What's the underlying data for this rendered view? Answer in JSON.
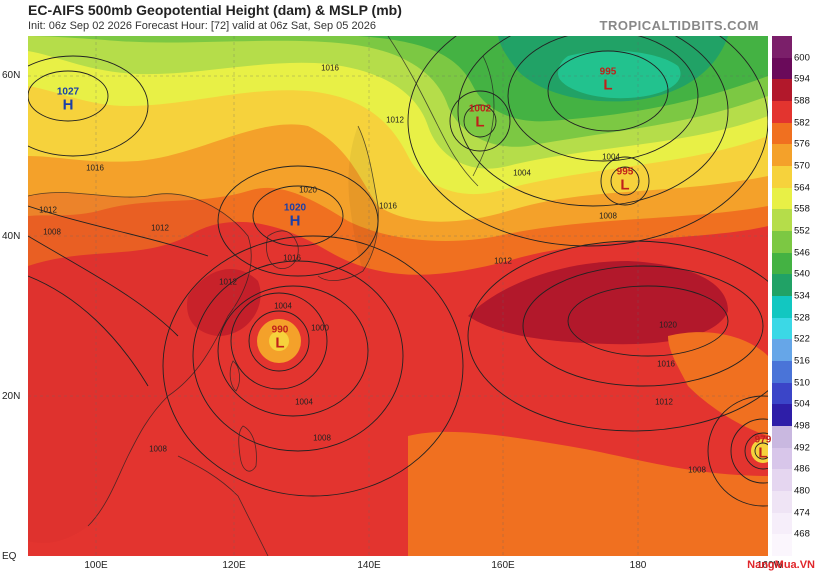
{
  "title": "EC-AIFS 500mb Geopotential Height (dam) & MSLP (mb)",
  "subtitle": "Init: 06z Sep 02 2026   Forecast Hour: [72]   valid at 06z Sat, Sep 05 2026",
  "brand": "TROPICALTIDBITS.COM",
  "watermark": "NangMua.VN",
  "lat_labels": [
    "60N",
    "40N",
    "20N",
    "EQ"
  ],
  "lon_labels": [
    "100E",
    "120E",
    "140E",
    "160E",
    "180",
    "160W"
  ],
  "colorbar": {
    "labels": [
      "600",
      "594",
      "588",
      "582",
      "576",
      "570",
      "564",
      "558",
      "552",
      "546",
      "540",
      "534",
      "528",
      "522",
      "516",
      "510",
      "504",
      "498",
      "492",
      "486",
      "480",
      "474",
      "468"
    ],
    "colors": [
      "#6a0a5a",
      "#b2182b",
      "#e3342f",
      "#f07020",
      "#f4a12a",
      "#f6d23c",
      "#e8f046",
      "#b5dd4a",
      "#7cc843",
      "#44b243",
      "#21a266",
      "#12c7c1",
      "#3bd8e6",
      "#66a6e8",
      "#4a74d8",
      "#3b45c8",
      "#2e1ea8",
      "#c9b8e0",
      "#d8c6ea",
      "#e5d6f0",
      "#efe4f5",
      "#f6eefa",
      "#fbf6fd"
    ]
  },
  "systems": [
    {
      "type": "H",
      "pressure": "1027",
      "color": "#1b3fa8",
      "label": "high-1027"
    },
    {
      "type": "H",
      "pressure": "1020",
      "color": "#1b3fa8",
      "label": "high-1020"
    },
    {
      "type": "L",
      "pressure": "1002",
      "color": "#c0201a",
      "label": "low-1002"
    },
    {
      "type": "L",
      "pressure": "995",
      "color": "#c0201a",
      "label": "low-995-north"
    },
    {
      "type": "L",
      "pressure": "995",
      "color": "#c0201a",
      "label": "low-995-east"
    },
    {
      "type": "L",
      "pressure": "990",
      "color": "#c0201a",
      "label": "low-990"
    },
    {
      "type": "L",
      "pressure": "979",
      "color": "#c0201a",
      "label": "low-979"
    }
  ],
  "isobar_labels": [
    "1012",
    "1008",
    "1016",
    "1004",
    "1020",
    "1012",
    "1016",
    "1004",
    "1000",
    "1004",
    "1016",
    "1012",
    "1008",
    "1020",
    "1016",
    "1012",
    "1008",
    "1008",
    "1012",
    "1016",
    "1012",
    "1008",
    "1004"
  ]
}
